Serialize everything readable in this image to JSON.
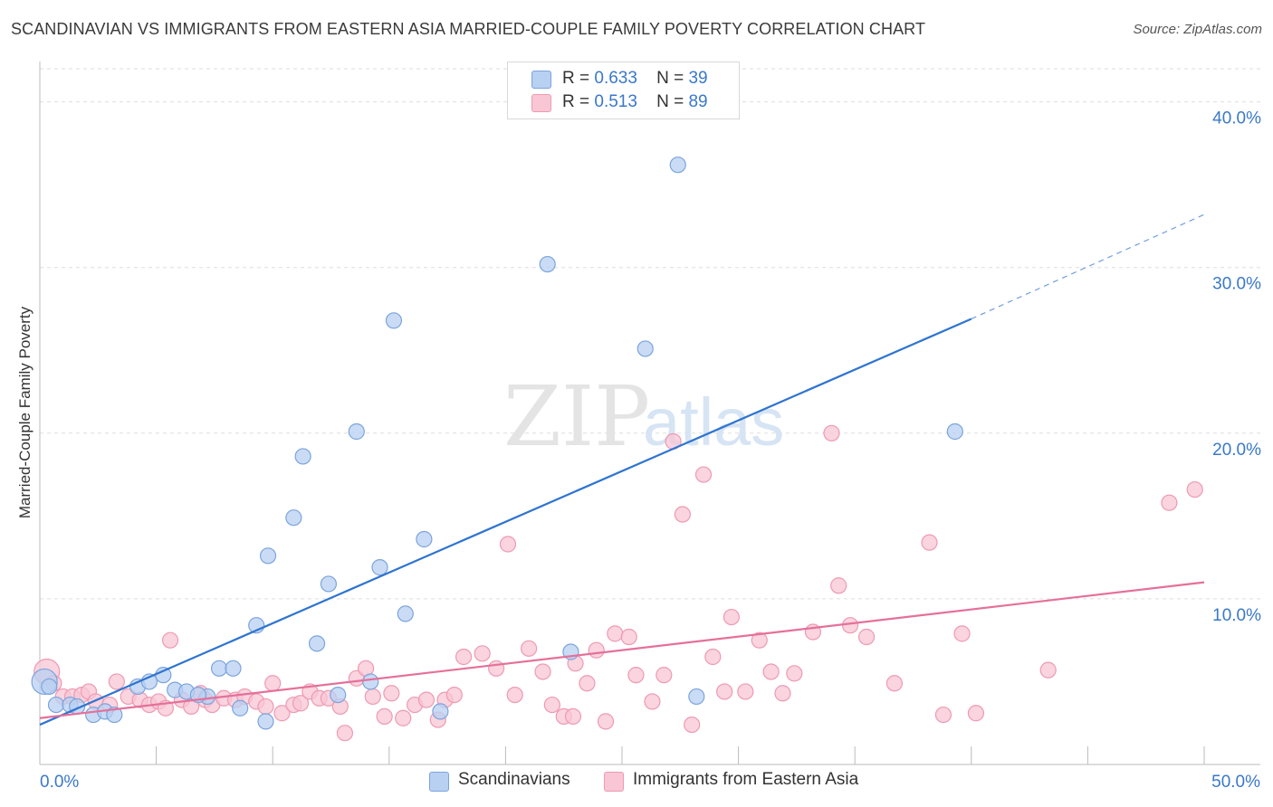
{
  "title": "SCANDINAVIAN VS IMMIGRANTS FROM EASTERN ASIA MARRIED-COUPLE FAMILY POVERTY CORRELATION CHART",
  "source": "Source: ZipAtlas.com",
  "watermark": {
    "zip": "ZIP",
    "atlas": "atlas"
  },
  "legend": {
    "series1": {
      "r_label": "R =",
      "r_value": "0.633",
      "n_label": "N =",
      "n_value": "39"
    },
    "series2": {
      "r_label": "R =",
      "r_value": "0.513",
      "n_label": "N =",
      "n_value": "89"
    }
  },
  "colors": {
    "blue_fill": "#b8d0f2",
    "blue_stroke": "#7ba4dd",
    "blue_line": "#2f74d0",
    "pink_fill": "#f8c6d4",
    "pink_stroke": "#ee9ab2",
    "pink_line": "#e5709a",
    "tick_text": "#3a78c9",
    "grid": "#dddddd",
    "axis": "#bbbbbb"
  },
  "chart_data": {
    "type": "scatter",
    "title": "SCANDINAVIAN VS IMMIGRANTS FROM EASTERN ASIA MARRIED-COUPLE FAMILY POVERTY CORRELATION CHART",
    "xlabel": "",
    "ylabel": "Married-Couple Family Poverty",
    "xlim": [
      0,
      50
    ],
    "ylim": [
      0,
      42
    ],
    "x_tick_labels": [
      {
        "value": 0,
        "label": "0.0%"
      },
      {
        "value": 50,
        "label": "50.0%"
      }
    ],
    "y_tick_labels": [
      {
        "value": 10,
        "label": "10.0%"
      },
      {
        "value": 20,
        "label": "20.0%"
      },
      {
        "value": 30,
        "label": "30.0%"
      },
      {
        "value": 40,
        "label": "40.0%"
      }
    ],
    "series": [
      {
        "name": "Scandinavians",
        "r": 0.633,
        "n": 39,
        "trend": {
          "x0": 0,
          "y0": 2.4,
          "x1": 40,
          "y1": 26.9,
          "dash_to_x": 50,
          "dash_to_y": 33.2
        },
        "points": [
          [
            0.2,
            5.0
          ],
          [
            0.7,
            3.6
          ],
          [
            1.3,
            3.6
          ],
          [
            2.3,
            3.0
          ],
          [
            2.8,
            3.2
          ],
          [
            3.2,
            3.0
          ],
          [
            4.2,
            4.7
          ],
          [
            4.7,
            5.0
          ],
          [
            5.3,
            5.4
          ],
          [
            5.8,
            4.5
          ],
          [
            6.3,
            4.4
          ],
          [
            7.2,
            4.1
          ],
          [
            7.7,
            5.8
          ],
          [
            8.3,
            5.8
          ],
          [
            8.6,
            3.4
          ],
          [
            9.3,
            8.4
          ],
          [
            9.7,
            2.6
          ],
          [
            9.8,
            12.6
          ],
          [
            10.9,
            14.9
          ],
          [
            11.3,
            18.6
          ],
          [
            11.9,
            7.3
          ],
          [
            12.4,
            10.9
          ],
          [
            12.8,
            4.2
          ],
          [
            13.6,
            20.1
          ],
          [
            14.2,
            5.0
          ],
          [
            14.6,
            11.9
          ],
          [
            15.2,
            26.8
          ],
          [
            15.7,
            9.1
          ],
          [
            16.5,
            13.6
          ],
          [
            17.2,
            3.2
          ],
          [
            21.8,
            30.2
          ],
          [
            22.8,
            6.8
          ],
          [
            26.0,
            25.1
          ],
          [
            27.4,
            36.2
          ],
          [
            28.2,
            4.1
          ],
          [
            39.3,
            20.1
          ],
          [
            0.4,
            4.7
          ],
          [
            1.6,
            3.5
          ],
          [
            6.8,
            4.2
          ]
        ]
      },
      {
        "name": "Immigrants from Eastern Asia",
        "r": 0.513,
        "n": 89,
        "trend": {
          "x0": 0,
          "y0": 2.8,
          "x1": 50,
          "y1": 11.0
        },
        "points": [
          [
            0.3,
            5.6
          ],
          [
            0.6,
            4.9
          ],
          [
            1.0,
            4.1
          ],
          [
            1.4,
            4.1
          ],
          [
            1.8,
            4.2
          ],
          [
            2.1,
            4.4
          ],
          [
            2.4,
            3.8
          ],
          [
            3.0,
            3.6
          ],
          [
            3.3,
            5.0
          ],
          [
            3.8,
            4.1
          ],
          [
            4.3,
            3.9
          ],
          [
            4.7,
            3.6
          ],
          [
            5.1,
            3.8
          ],
          [
            5.4,
            3.4
          ],
          [
            5.6,
            7.5
          ],
          [
            6.1,
            3.9
          ],
          [
            6.5,
            3.5
          ],
          [
            6.9,
            4.3
          ],
          [
            7.1,
            3.9
          ],
          [
            7.4,
            3.6
          ],
          [
            7.9,
            4.0
          ],
          [
            8.4,
            3.9
          ],
          [
            8.8,
            4.1
          ],
          [
            9.3,
            3.8
          ],
          [
            9.7,
            3.5
          ],
          [
            10.0,
            4.9
          ],
          [
            10.4,
            3.1
          ],
          [
            10.9,
            3.6
          ],
          [
            11.2,
            3.7
          ],
          [
            11.6,
            4.4
          ],
          [
            12.0,
            4.0
          ],
          [
            12.4,
            4.0
          ],
          [
            12.9,
            3.5
          ],
          [
            13.1,
            1.9
          ],
          [
            13.6,
            5.2
          ],
          [
            14.0,
            5.8
          ],
          [
            14.3,
            4.1
          ],
          [
            14.8,
            2.9
          ],
          [
            15.1,
            4.3
          ],
          [
            15.6,
            2.8
          ],
          [
            16.1,
            3.6
          ],
          [
            16.6,
            3.9
          ],
          [
            17.1,
            2.7
          ],
          [
            17.4,
            3.9
          ],
          [
            17.8,
            4.2
          ],
          [
            18.2,
            6.5
          ],
          [
            19.0,
            6.7
          ],
          [
            19.6,
            5.8
          ],
          [
            20.1,
            13.3
          ],
          [
            20.4,
            4.2
          ],
          [
            21.0,
            7.0
          ],
          [
            21.6,
            5.6
          ],
          [
            22.0,
            3.6
          ],
          [
            22.5,
            2.9
          ],
          [
            22.9,
            2.9
          ],
          [
            23.0,
            6.1
          ],
          [
            23.5,
            4.9
          ],
          [
            23.9,
            6.9
          ],
          [
            24.3,
            2.6
          ],
          [
            24.7,
            7.9
          ],
          [
            25.3,
            7.7
          ],
          [
            25.6,
            5.4
          ],
          [
            26.3,
            3.8
          ],
          [
            26.8,
            5.4
          ],
          [
            27.2,
            19.5
          ],
          [
            27.6,
            15.1
          ],
          [
            28.0,
            2.4
          ],
          [
            28.5,
            17.5
          ],
          [
            28.9,
            6.5
          ],
          [
            29.4,
            4.4
          ],
          [
            29.7,
            8.9
          ],
          [
            30.3,
            4.4
          ],
          [
            30.9,
            7.5
          ],
          [
            31.4,
            5.6
          ],
          [
            31.9,
            4.3
          ],
          [
            32.4,
            5.5
          ],
          [
            33.2,
            8.0
          ],
          [
            34.0,
            20.0
          ],
          [
            34.3,
            10.8
          ],
          [
            34.8,
            8.4
          ],
          [
            35.5,
            7.7
          ],
          [
            36.7,
            4.9
          ],
          [
            38.2,
            13.4
          ],
          [
            38.8,
            3.0
          ],
          [
            39.6,
            7.9
          ],
          [
            40.2,
            3.1
          ],
          [
            43.3,
            5.7
          ],
          [
            48.5,
            15.8
          ],
          [
            49.6,
            16.6
          ]
        ]
      }
    ]
  }
}
